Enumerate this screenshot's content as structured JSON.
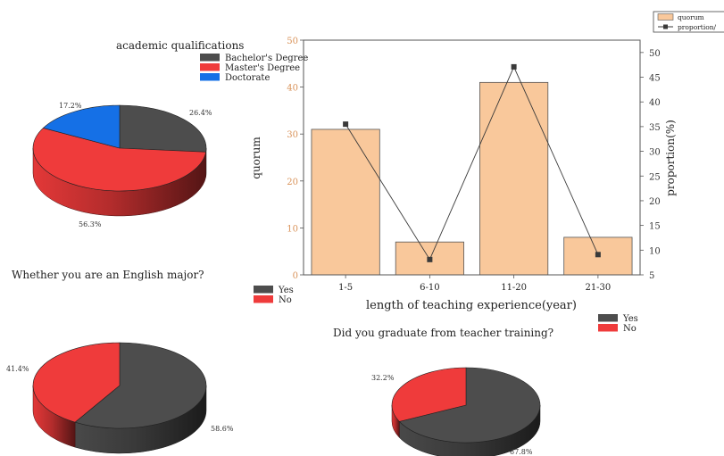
{
  "chart_data": [
    {
      "type": "pie",
      "title": "academic qualifications",
      "labels": [
        "Bachelor's Degree",
        "Master's Degree",
        "Doctorate"
      ],
      "values": [
        26.4,
        56.3,
        17.2
      ],
      "value_labels": [
        "26.4%",
        "56.3%",
        "17.2%"
      ],
      "colors": [
        "#4d4d4d",
        "#ef3b3b",
        "#1570e6"
      ],
      "legend": "top-right",
      "style": "3d"
    },
    {
      "type": "bar",
      "categories": [
        "1-5",
        "6-10",
        "11-20",
        "21-30"
      ],
      "series": [
        {
          "name": "quorum",
          "type": "bar",
          "axis": "left",
          "values": [
            31,
            7,
            41,
            8
          ],
          "color": "#f9c89b"
        },
        {
          "name": "proportion/",
          "type": "line",
          "axis": "right",
          "values": [
            35.5,
            8.1,
            47.1,
            9.1
          ],
          "color": "#3a3a3a"
        }
      ],
      "xlabel": "length of teaching experience(year)",
      "ylabel": "quorum",
      "ylabel_right": "proportion(%)",
      "ylim": [
        0,
        50
      ],
      "ylim_right": [
        5,
        52.5
      ],
      "yticks": [
        "0",
        "10",
        "20",
        "30",
        "40",
        "50"
      ],
      "yticks_right": [
        "5",
        "10",
        "15",
        "20",
        "25",
        "30",
        "35",
        "40",
        "45",
        "50"
      ],
      "legend": "top-right",
      "grid": false
    },
    {
      "type": "pie",
      "title": "Whether you are an English major?",
      "labels": [
        "Yes",
        "No"
      ],
      "values": [
        58.6,
        41.4
      ],
      "value_labels": [
        "58.6%",
        "41.4%"
      ],
      "colors": [
        "#4d4d4d",
        "#ef3b3b"
      ],
      "legend": "top-right",
      "style": "3d"
    },
    {
      "type": "pie",
      "title": "Did you graduate from teacher training?",
      "labels": [
        "Yes",
        "No"
      ],
      "values": [
        67.8,
        32.2
      ],
      "value_labels": [
        "67.8%",
        "32.2%"
      ],
      "colors": [
        "#4d4d4d",
        "#ef3b3b"
      ],
      "legend": "top-right",
      "style": "3d"
    }
  ]
}
